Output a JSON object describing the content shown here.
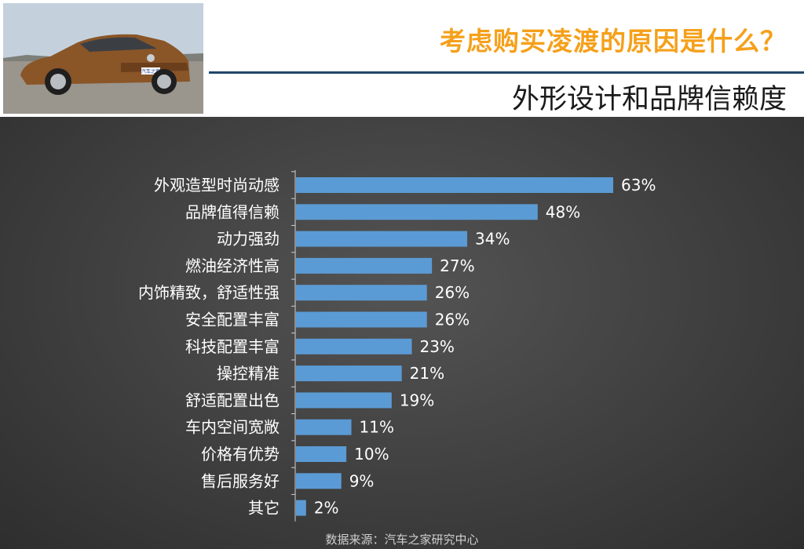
{
  "header": {
    "title": "考虑购买凌渡的原因是什么？",
    "subtitle": "外形设计和品牌信赖度"
  },
  "photo": {
    "plate_text": "汽车之家"
  },
  "colors": {
    "bar": "#5b9bd5",
    "title": "#f5a01a",
    "background": "#3a3a3a"
  },
  "chart_data": {
    "type": "bar",
    "orientation": "horizontal",
    "categories": [
      "外观造型时尚动感",
      "品牌值得信赖",
      "动力强劲",
      "燃油经济性高",
      "内饰精致，舒适性强",
      "安全配置丰富",
      "科技配置丰富",
      "操控精准",
      "舒适配置出色",
      "车内空间宽敞",
      "价格有优势",
      "售后服务好",
      "其它"
    ],
    "values": [
      63,
      48,
      34,
      27,
      26,
      26,
      23,
      21,
      19,
      11,
      10,
      9,
      2
    ],
    "labels": [
      "63%",
      "48%",
      "34%",
      "27%",
      "26%",
      "26%",
      "23%",
      "21%",
      "19%",
      "11%",
      "10%",
      "9%",
      "2%"
    ],
    "unit": "%",
    "xlim": [
      0,
      63
    ],
    "grid": false,
    "legend": "none"
  },
  "footer": {
    "source": "数据来源：汽车之家研究中心"
  }
}
